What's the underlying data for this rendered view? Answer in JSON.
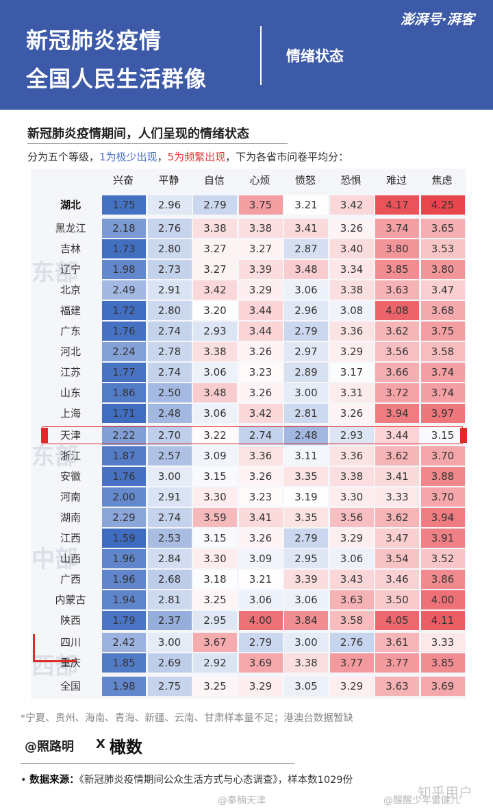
{
  "header": {
    "title_line1": "新冠肺炎疫情",
    "title_line2": "全国人民生活群像",
    "section": "情绪状态",
    "brand": "澎湃号·湃客"
  },
  "subtitle": "新冠肺炎疫情期间，人们呈现的情绪状态",
  "description": {
    "prefix": "分为五个等级，",
    "low": "1为极少出现",
    "sep": "，",
    "high": "5为频繁出现",
    "suffix": "，下为各省市问卷平均分："
  },
  "region_watermarks": [
    "东部",
    "东部",
    "中部",
    "西部"
  ],
  "chart_data": {
    "type": "heatmap",
    "columns": [
      "兴奋",
      "平静",
      "自信",
      "心烦",
      "愤怒",
      "恐惧",
      "难过",
      "焦虑"
    ],
    "rows": [
      {
        "name": "湖北",
        "values": [
          1.75,
          2.96,
          2.79,
          3.75,
          3.21,
          3.42,
          4.17,
          4.25
        ]
      },
      {
        "name": "黑龙江",
        "values": [
          2.18,
          2.76,
          3.38,
          3.38,
          3.41,
          3.26,
          3.74,
          3.65
        ]
      },
      {
        "name": "吉林",
        "values": [
          1.73,
          2.8,
          3.27,
          3.27,
          2.87,
          3.4,
          3.8,
          3.53
        ]
      },
      {
        "name": "辽宁",
        "values": [
          1.98,
          2.73,
          3.27,
          3.39,
          3.48,
          3.34,
          3.85,
          3.8
        ]
      },
      {
        "name": "北京",
        "values": [
          2.49,
          2.91,
          3.42,
          3.29,
          3.06,
          3.38,
          3.63,
          3.47
        ]
      },
      {
        "name": "福建",
        "values": [
          1.72,
          2.8,
          3.2,
          3.44,
          2.96,
          3.08,
          4.08,
          3.68
        ]
      },
      {
        "name": "广东",
        "values": [
          1.76,
          2.74,
          2.93,
          3.44,
          2.79,
          3.36,
          3.62,
          3.75
        ]
      },
      {
        "name": "河北",
        "values": [
          2.24,
          2.78,
          3.38,
          3.26,
          2.97,
          3.29,
          3.56,
          3.58
        ]
      },
      {
        "name": "江苏",
        "values": [
          1.77,
          2.74,
          3.06,
          3.23,
          2.89,
          3.17,
          3.66,
          3.74
        ]
      },
      {
        "name": "山东",
        "values": [
          1.86,
          2.5,
          3.48,
          3.26,
          3.0,
          3.31,
          3.72,
          3.74
        ]
      },
      {
        "name": "上海",
        "values": [
          1.71,
          2.48,
          3.06,
          3.42,
          2.81,
          3.26,
          3.94,
          3.97
        ]
      },
      {
        "name": "天津",
        "values": [
          2.22,
          2.7,
          3.22,
          2.74,
          2.48,
          2.93,
          3.44,
          3.15
        ]
      },
      {
        "name": "浙江",
        "values": [
          1.87,
          2.57,
          3.09,
          3.36,
          3.11,
          3.36,
          3.62,
          3.7
        ]
      },
      {
        "name": "安徽",
        "values": [
          1.76,
          3.0,
          3.15,
          3.26,
          3.35,
          3.38,
          3.41,
          3.88
        ]
      },
      {
        "name": "河南",
        "values": [
          2.0,
          2.91,
          3.3,
          3.23,
          3.19,
          3.3,
          3.33,
          3.7
        ]
      },
      {
        "name": "湖南",
        "values": [
          2.29,
          2.74,
          3.59,
          3.41,
          3.35,
          3.56,
          3.62,
          3.94
        ]
      },
      {
        "name": "江西",
        "values": [
          1.59,
          2.53,
          3.15,
          3.26,
          2.79,
          3.29,
          3.47,
          3.91
        ]
      },
      {
        "name": "山西",
        "values": [
          1.96,
          2.84,
          3.3,
          3.09,
          2.95,
          3.06,
          3.54,
          3.52
        ]
      },
      {
        "name": "广西",
        "values": [
          1.96,
          2.68,
          3.18,
          3.21,
          3.39,
          3.43,
          3.46,
          3.86
        ]
      },
      {
        "name": "内蒙古",
        "values": [
          1.94,
          2.81,
          3.25,
          3.06,
          3.06,
          3.63,
          3.5,
          4.0
        ]
      },
      {
        "name": "陕西",
        "values": [
          1.79,
          2.37,
          2.95,
          4.0,
          3.84,
          3.58,
          4.05,
          4.11
        ]
      },
      {
        "name": "四川",
        "values": [
          2.42,
          3.0,
          3.67,
          2.79,
          3.0,
          2.76,
          3.61,
          3.33
        ]
      },
      {
        "name": "重庆",
        "values": [
          1.85,
          2.69,
          2.92,
          3.69,
          3.38,
          3.77,
          3.77,
          3.85
        ]
      },
      {
        "name": "全国",
        "values": [
          1.98,
          2.75,
          3.25,
          3.29,
          3.05,
          3.29,
          3.63,
          3.69
        ]
      }
    ],
    "color_scale": {
      "low": "#3f6cc0",
      "mid": "#ffffff",
      "high": "#e8454c",
      "domain": [
        1.7,
        3.2,
        4.25
      ]
    }
  },
  "footnote": "*宁夏、贵州、海南、青海、新疆、云南、甘肃样本量不足；港澳台数据暂缺",
  "author": {
    "name": "@照路明",
    "x": "X",
    "partner": "橄数"
  },
  "source": {
    "label": "数据来源：",
    "text": "《新冠肺炎疫情期间公众生活方式与心态调查》，样本数1029份"
  },
  "watermarks": {
    "left": "@秦楠天津",
    "right": "@醒醒少年雷健儿",
    "zhihu": "知乎用户"
  }
}
